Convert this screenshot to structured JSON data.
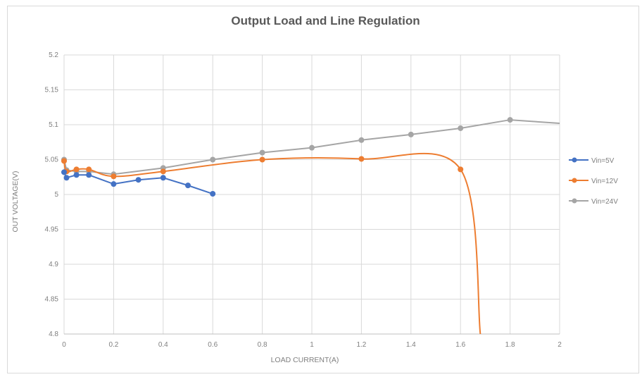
{
  "chart_data": {
    "type": "line",
    "title": "Output Load and Line Regulation",
    "xlabel": "LOAD CURRENT(A)",
    "ylabel": "OUT VOLTAGE(V)",
    "xlim": [
      0,
      2
    ],
    "ylim": [
      4.8,
      5.2
    ],
    "x_ticks": [
      "0",
      "0.2",
      "0.4",
      "0.6",
      "0.8",
      "1",
      "1.2",
      "1.4",
      "1.6",
      "1.8",
      "2"
    ],
    "y_ticks": [
      "4.8",
      "4.85",
      "4.9",
      "4.95",
      "5",
      "5.05",
      "5.1",
      "5.15",
      "5.2"
    ],
    "grid": true,
    "legend_position": "right",
    "series": [
      {
        "name": "Vin=5V",
        "color": "#4472c4",
        "x": [
          0,
          0.01,
          0.05,
          0.1,
          0.2,
          0.3,
          0.4,
          0.5,
          0.6
        ],
        "y": [
          5.032,
          5.024,
          5.028,
          5.028,
          5.015,
          5.021,
          5.024,
          5.013,
          5.001
        ]
      },
      {
        "name": "Vin=12V",
        "color": "#ed7d31",
        "x": [
          0,
          0.01,
          0.05,
          0.1,
          0.2,
          0.4,
          0.8,
          1.2,
          1.6,
          1.68
        ],
        "y": [
          5.048,
          5.033,
          5.036,
          5.036,
          5.026,
          5.033,
          5.05,
          5.051,
          5.036,
          4.8
        ]
      },
      {
        "name": "Vin=24V",
        "color": "#a5a5a5",
        "x": [
          0,
          0.01,
          0.05,
          0.1,
          0.2,
          0.4,
          0.6,
          0.8,
          1.0,
          1.2,
          1.4,
          1.6,
          1.8,
          2.0
        ],
        "y": [
          5.05,
          5.035,
          5.033,
          5.033,
          5.029,
          5.038,
          5.05,
          5.06,
          5.067,
          5.078,
          5.086,
          5.095,
          5.107,
          5.102
        ]
      }
    ]
  }
}
